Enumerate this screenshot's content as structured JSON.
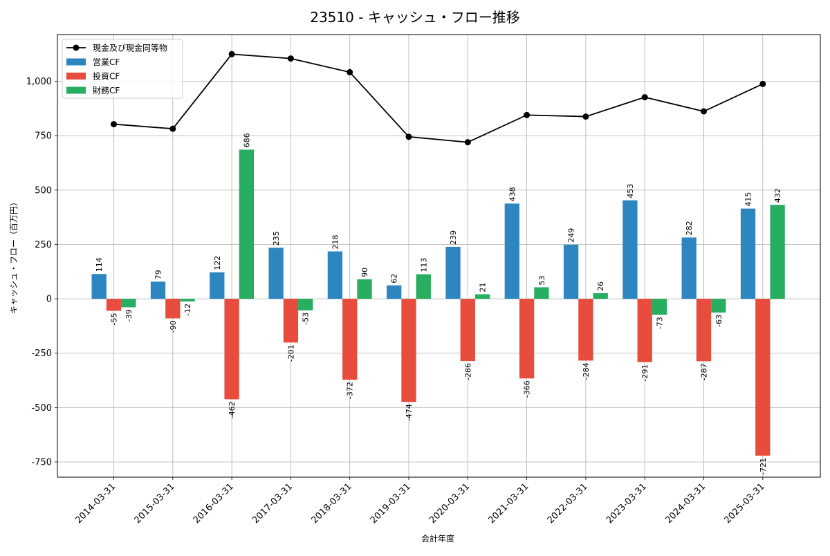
{
  "chart_data": {
    "type": "bar",
    "title": "23510 - キャッシュ・フロー推移",
    "xlabel": "会計年度",
    "ylabel": "キャッシュ・フロー（百万円）",
    "ylim": [
      -820,
      1215
    ],
    "yticks": [
      -750,
      -500,
      -250,
      0,
      250,
      500,
      750,
      1000
    ],
    "ytick_labels": [
      "-750",
      "-500",
      "-250",
      "0",
      "250",
      "500",
      "750",
      "1,000"
    ],
    "grid": true,
    "legend_position": "top-left",
    "categories": [
      "2014-03-31",
      "2015-03-31",
      "2016-03-31",
      "2017-03-31",
      "2018-03-31",
      "2019-03-31",
      "2020-03-31",
      "2021-03-31",
      "2022-03-31",
      "2023-03-31",
      "2024-03-31",
      "2025-03-31"
    ],
    "series": [
      {
        "name": "営業CF",
        "type": "bar",
        "color": "#2e86c1",
        "values": [
          114,
          79,
          122,
          235,
          218,
          62,
          239,
          438,
          249,
          453,
          282,
          415
        ],
        "labels": [
          "114",
          "79",
          "122",
          "235",
          "218",
          "62",
          "239",
          "438",
          "249",
          "453",
          "282",
          "415"
        ]
      },
      {
        "name": "投資CF",
        "type": "bar",
        "color": "#e74c3c",
        "values": [
          -55,
          -90,
          -462,
          -201,
          -372,
          -474,
          -286,
          -366,
          -284,
          -291,
          -287,
          -721
        ],
        "labels": [
          "-55",
          "-90",
          "-462",
          "-201",
          "-372",
          "-474",
          "-286",
          "-366",
          "-284",
          "-291",
          "-287",
          "-721"
        ]
      },
      {
        "name": "財務CF",
        "type": "bar",
        "color": "#27ae60",
        "values": [
          -39,
          -12,
          686,
          -53,
          90,
          113,
          21,
          53,
          26,
          -73,
          -63,
          432
        ],
        "labels": [
          "-39",
          "-12",
          "686",
          "-53",
          "90",
          "113",
          "21",
          "53",
          "26",
          "-73",
          "-63",
          "432"
        ]
      },
      {
        "name": "現金及び現金同等物",
        "type": "line",
        "color": "#000000",
        "values": [
          803,
          782,
          1125,
          1105,
          1042,
          745,
          720,
          845,
          838,
          927,
          862,
          988
        ]
      }
    ]
  }
}
